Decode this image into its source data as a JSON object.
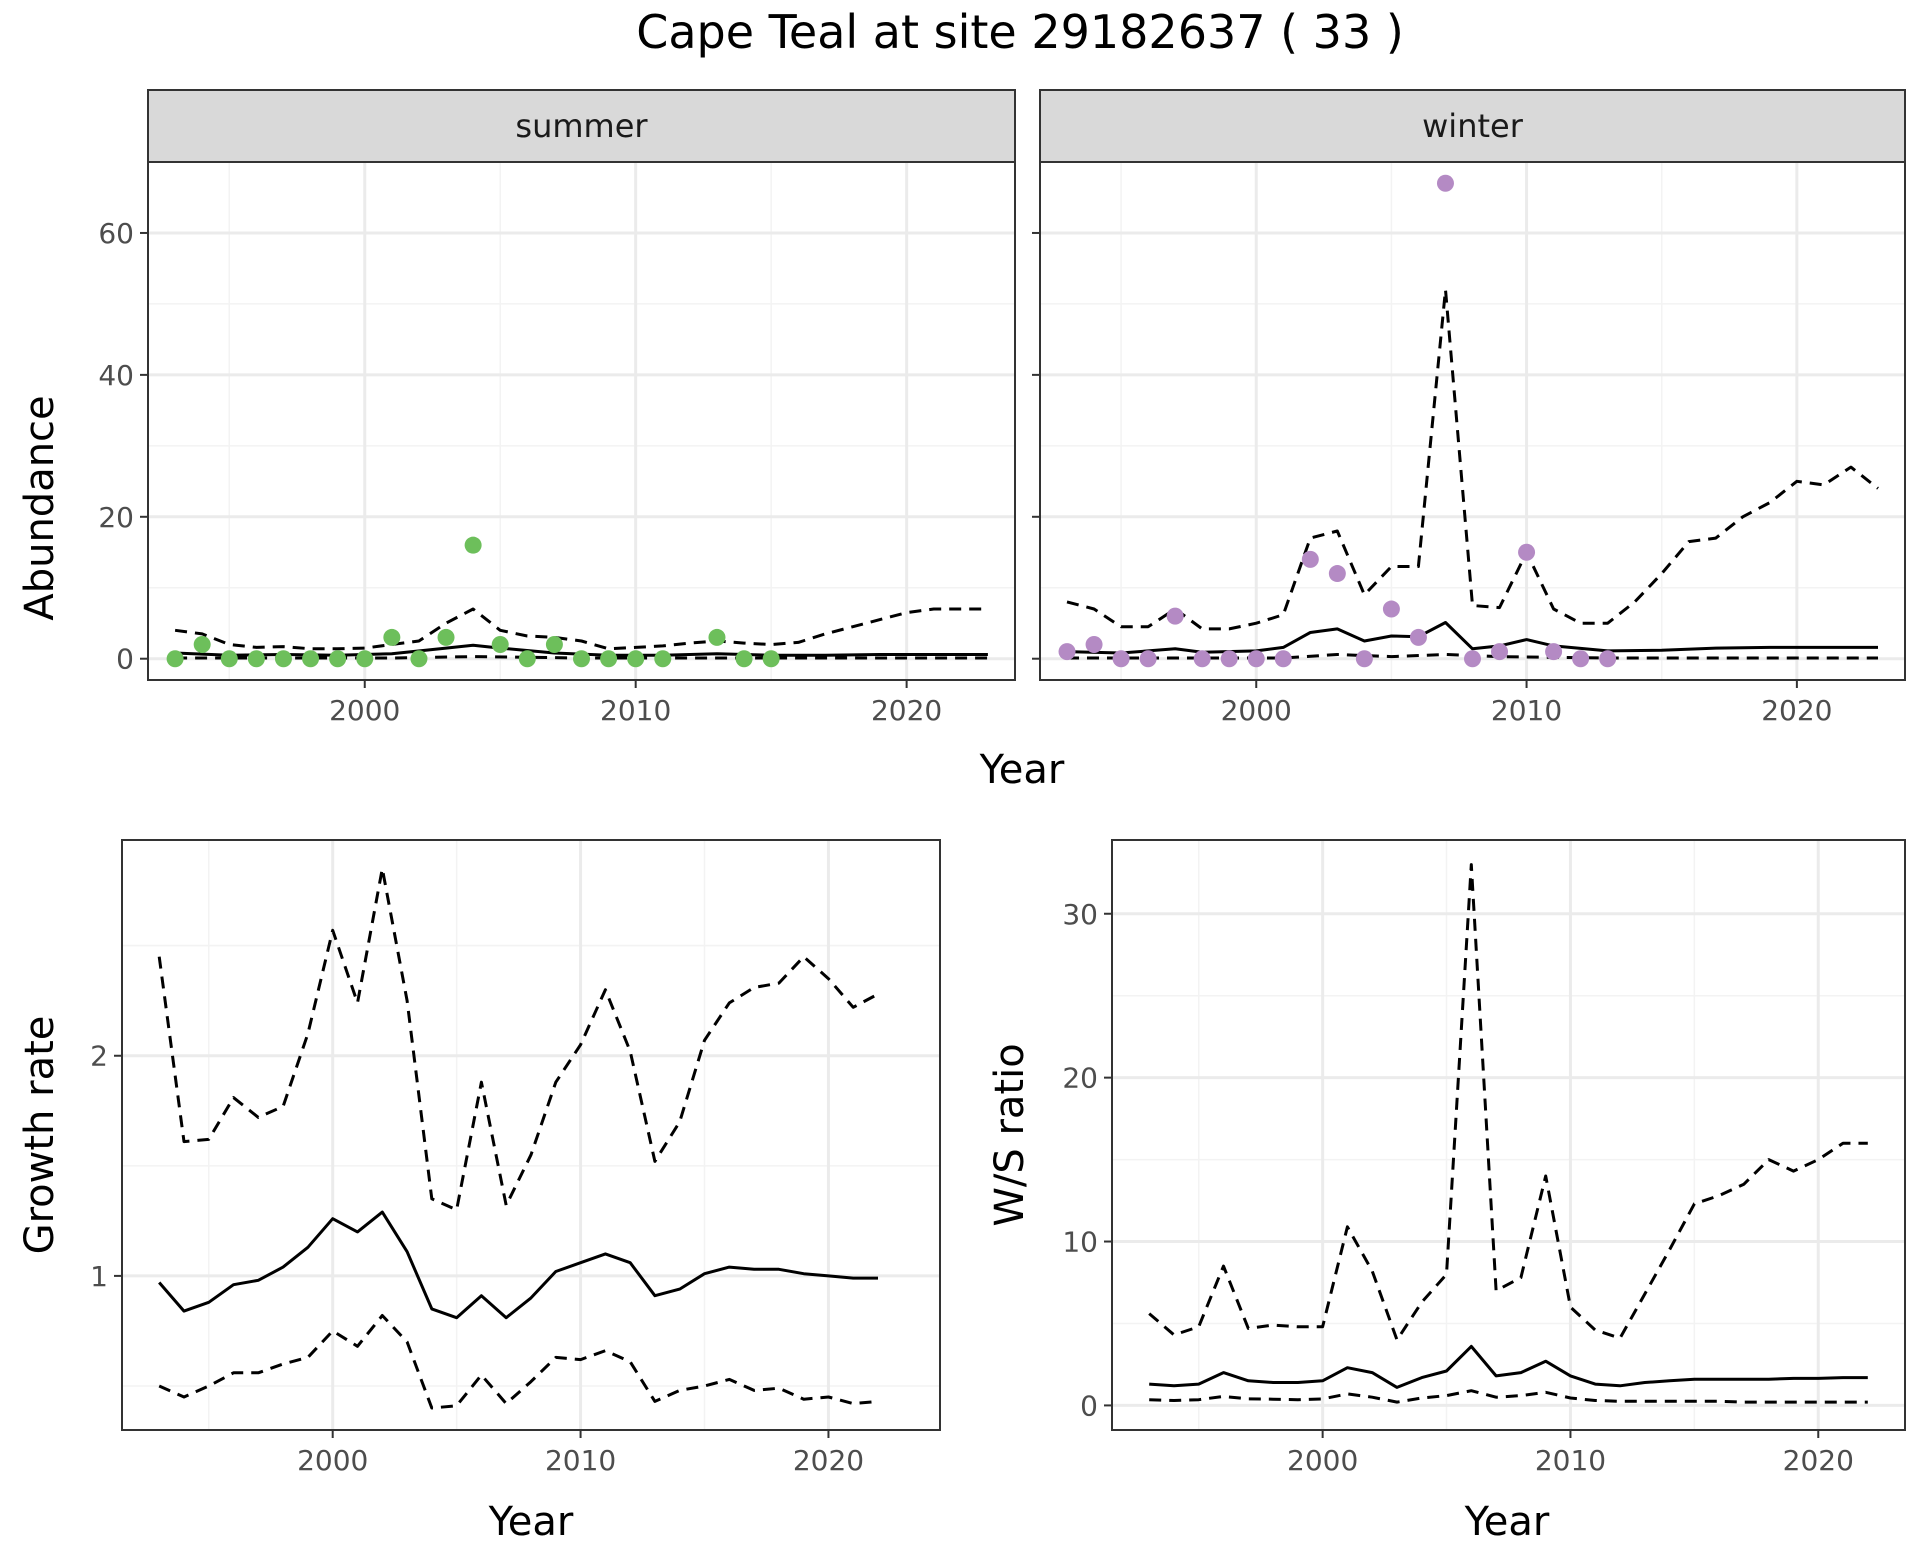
{
  "title": "Cape Teal at site 29182637 ( 33 )",
  "colors": {
    "summer_points": "#6dbf5b",
    "winter_points": "#b48ac4",
    "lines": "#000000",
    "strip_bg": "#d9d9d9",
    "grid": "#ebebeb"
  },
  "chart_data": [
    {
      "type": "line",
      "panel": "summer",
      "strip": "summer",
      "xlabel": "Year",
      "ylabel": "Abundance",
      "xlim": [
        1992,
        2024
      ],
      "ylim": [
        -3,
        70
      ],
      "xticks": [
        2000,
        2010,
        2020
      ],
      "yticks": [
        0,
        20,
        40,
        60
      ],
      "grid": true,
      "points": {
        "x": [
          1993,
          1994,
          1995,
          1996,
          1997,
          1998,
          1999,
          2000,
          2001,
          2002,
          2003,
          2004,
          2005,
          2006,
          2007,
          2008,
          2009,
          2010,
          2011,
          2013,
          2014,
          2015
        ],
        "y": [
          0,
          2,
          0,
          0,
          0,
          0,
          0,
          0,
          3,
          0,
          3,
          16,
          2,
          0,
          2,
          0,
          0,
          0,
          0,
          3,
          0,
          0
        ]
      },
      "series": [
        {
          "style": "solid",
          "x": [
            1993,
            1995,
            1997,
            1999,
            2001,
            2003,
            2004,
            2005,
            2007,
            2009,
            2011,
            2013,
            2015,
            2017,
            2019,
            2021,
            2023
          ],
          "y": [
            0.8,
            0.5,
            0.6,
            0.5,
            0.7,
            1.5,
            1.9,
            1.5,
            0.8,
            0.5,
            0.5,
            0.7,
            0.5,
            0.5,
            0.6,
            0.6,
            0.6
          ]
        },
        {
          "style": "dashed",
          "x": [
            1993,
            1994,
            1995,
            1996,
            1997,
            1998,
            1999,
            2000,
            2001,
            2002,
            2003,
            2004,
            2005,
            2006,
            2007,
            2008,
            2009,
            2010,
            2011,
            2012,
            2013,
            2014,
            2015,
            2016,
            2017,
            2018,
            2019,
            2020,
            2021,
            2022,
            2023
          ],
          "y": [
            4,
            3.5,
            2,
            1.6,
            1.7,
            1.4,
            1.4,
            1.5,
            2,
            2.5,
            5,
            7,
            4,
            3.2,
            3,
            2.5,
            1.4,
            1.6,
            1.8,
            2.2,
            2.5,
            2.2,
            2,
            2.3,
            3.5,
            4.5,
            5.5,
            6.5,
            7,
            7,
            7
          ]
        },
        {
          "style": "dashed",
          "x": [
            1993,
            1997,
            2001,
            2004,
            2008,
            2012,
            2016,
            2020,
            2023
          ],
          "y": [
            0.1,
            0.1,
            0.1,
            0.3,
            0.1,
            0.1,
            0.1,
            0.1,
            0.1
          ]
        }
      ]
    },
    {
      "type": "line",
      "panel": "winter",
      "strip": "winter",
      "xlabel": "Year",
      "ylabel": "",
      "xlim": [
        1992,
        2024
      ],
      "ylim": [
        -3,
        70
      ],
      "xticks": [
        2000,
        2010,
        2020
      ],
      "yticks": [
        0,
        20,
        40,
        60
      ],
      "grid": true,
      "points": {
        "x": [
          1993,
          1994,
          1995,
          1996,
          1997,
          1998,
          1999,
          2000,
          2001,
          2002,
          2003,
          2004,
          2005,
          2006,
          2007,
          2008,
          2009,
          2010,
          2011,
          2012,
          2013
        ],
        "y": [
          1,
          2,
          0,
          0,
          6,
          0,
          0,
          0,
          0,
          14,
          12,
          0,
          7,
          3,
          67,
          0,
          1,
          15,
          1,
          0,
          0
        ]
      },
      "series": [
        {
          "style": "solid",
          "x": [
            1993,
            1995,
            1997,
            1998,
            2000,
            2001,
            2002,
            2003,
            2004,
            2005,
            2006,
            2007,
            2008,
            2009,
            2010,
            2011,
            2013,
            2015,
            2017,
            2019,
            2021,
            2023
          ],
          "y": [
            1,
            0.8,
            1.4,
            0.9,
            1.1,
            1.6,
            3.7,
            4.2,
            2.5,
            3.2,
            3.1,
            5.1,
            1.4,
            1.8,
            2.7,
            1.8,
            1.1,
            1.2,
            1.5,
            1.6,
            1.6,
            1.6
          ]
        },
        {
          "style": "dashed",
          "x": [
            1993,
            1994,
            1995,
            1996,
            1997,
            1998,
            1999,
            2000,
            2001,
            2002,
            2003,
            2004,
            2005,
            2006,
            2007,
            2008,
            2009,
            2010,
            2011,
            2012,
            2013,
            2014,
            2015,
            2016,
            2017,
            2018,
            2019,
            2020,
            2021,
            2022,
            2023
          ],
          "y": [
            8,
            7,
            4.5,
            4.5,
            7,
            4.2,
            4.2,
            5,
            6.2,
            17,
            18,
            9,
            13,
            13,
            52,
            7.5,
            7.2,
            15,
            7,
            5,
            5,
            8,
            12,
            16.5,
            17,
            20,
            22,
            25,
            24.5,
            27,
            24
          ]
        },
        {
          "style": "dashed",
          "x": [
            1993,
            1997,
            2001,
            2003,
            2005,
            2007,
            2009,
            2013,
            2017,
            2023
          ],
          "y": [
            0.1,
            0.1,
            0.1,
            0.6,
            0.3,
            0.6,
            0.3,
            0.1,
            0.1,
            0.1
          ]
        }
      ]
    },
    {
      "type": "line",
      "panel": "growth",
      "xlabel": "Year",
      "ylabel": "Growth rate",
      "xlim": [
        1991.5,
        2024.5
      ],
      "ylim": [
        0.3,
        2.98
      ],
      "xticks": [
        2000,
        2010,
        2020
      ],
      "yticks": [
        1,
        2
      ],
      "grid": true,
      "series": [
        {
          "style": "solid",
          "x": [
            1993,
            1994,
            1995,
            1996,
            1997,
            1998,
            1999,
            2000,
            2001,
            2002,
            2003,
            2004,
            2005,
            2006,
            2007,
            2008,
            2009,
            2010,
            2011,
            2012,
            2013,
            2014,
            2015,
            2016,
            2017,
            2018,
            2019,
            2020,
            2021,
            2022
          ],
          "y": [
            0.97,
            0.84,
            0.88,
            0.96,
            0.98,
            1.04,
            1.13,
            1.26,
            1.2,
            1.29,
            1.11,
            0.85,
            0.81,
            0.91,
            0.81,
            0.9,
            1.02,
            1.06,
            1.1,
            1.06,
            0.91,
            0.94,
            1.01,
            1.04,
            1.03,
            1.03,
            1.01,
            1,
            0.99,
            0.99
          ]
        },
        {
          "style": "dashed",
          "x": [
            1993,
            1994,
            1995,
            1996,
            1997,
            1998,
            1999,
            2000,
            2001,
            2002,
            2003,
            2004,
            2005,
            2006,
            2007,
            2008,
            2009,
            2010,
            2011,
            2012,
            2013,
            2014,
            2015,
            2016,
            2017,
            2018,
            2019,
            2020,
            2021,
            2022
          ],
          "y": [
            2.45,
            1.61,
            1.62,
            1.81,
            1.72,
            1.77,
            2.1,
            2.57,
            2.24,
            2.85,
            2.25,
            1.35,
            1.3,
            1.88,
            1.32,
            1.55,
            1.88,
            2.05,
            2.3,
            2.02,
            1.52,
            1.7,
            2.07,
            2.24,
            2.31,
            2.33,
            2.45,
            2.35,
            2.22,
            2.28
          ]
        },
        {
          "style": "dashed",
          "x": [
            1993,
            1994,
            1995,
            1996,
            1997,
            1998,
            1999,
            2000,
            2001,
            2002,
            2003,
            2004,
            2005,
            2006,
            2007,
            2008,
            2009,
            2010,
            2011,
            2012,
            2013,
            2014,
            2015,
            2016,
            2017,
            2018,
            2019,
            2020,
            2021,
            2022
          ],
          "y": [
            0.5,
            0.45,
            0.5,
            0.56,
            0.56,
            0.6,
            0.63,
            0.75,
            0.68,
            0.82,
            0.7,
            0.4,
            0.41,
            0.55,
            0.42,
            0.52,
            0.63,
            0.62,
            0.66,
            0.61,
            0.43,
            0.48,
            0.5,
            0.53,
            0.48,
            0.49,
            0.44,
            0.45,
            0.42,
            0.43
          ]
        }
      ]
    },
    {
      "type": "line",
      "panel": "ratio",
      "xlabel": "Year",
      "ylabel": "W/S ratio",
      "xlim": [
        1991.5,
        2023.5
      ],
      "ylim": [
        -1.5,
        34.5
      ],
      "xticks": [
        2000,
        2010,
        2020
      ],
      "yticks": [
        0,
        10,
        20,
        30
      ],
      "grid": true,
      "series": [
        {
          "style": "solid",
          "x": [
            1993,
            1994,
            1995,
            1996,
            1997,
            1998,
            1999,
            2000,
            2001,
            2002,
            2003,
            2004,
            2005,
            2006,
            2007,
            2008,
            2009,
            2010,
            2011,
            2012,
            2013,
            2014,
            2015,
            2016,
            2017,
            2018,
            2019,
            2020,
            2021,
            2022
          ],
          "y": [
            1.3,
            1.2,
            1.3,
            2,
            1.5,
            1.4,
            1.4,
            1.5,
            2.3,
            2,
            1.1,
            1.7,
            2.1,
            3.6,
            1.8,
            2,
            2.7,
            1.8,
            1.3,
            1.2,
            1.4,
            1.5,
            1.6,
            1.6,
            1.6,
            1.6,
            1.65,
            1.65,
            1.7,
            1.7
          ]
        },
        {
          "style": "dashed",
          "x": [
            1993,
            1994,
            1995,
            1996,
            1997,
            1998,
            1999,
            2000,
            2001,
            2002,
            2003,
            2004,
            2005,
            2006,
            2007,
            2008,
            2009,
            2010,
            2011,
            2012,
            2013,
            2014,
            2015,
            2016,
            2017,
            2018,
            2019,
            2020,
            2021,
            2022
          ],
          "y": [
            5.6,
            4.3,
            4.8,
            8.5,
            4.7,
            4.9,
            4.8,
            4.8,
            10.9,
            8.2,
            4,
            6.3,
            8,
            33,
            7,
            7.8,
            14,
            6,
            4.6,
            4.1,
            6.8,
            9.5,
            12.3,
            12.8,
            13.5,
            15,
            14.3,
            15,
            16,
            16
          ]
        },
        {
          "style": "dashed",
          "x": [
            1993,
            1994,
            1995,
            1996,
            1997,
            1998,
            1999,
            2000,
            2001,
            2002,
            2003,
            2004,
            2005,
            2006,
            2007,
            2008,
            2009,
            2010,
            2011,
            2012,
            2013,
            2014,
            2015,
            2016,
            2017,
            2018,
            2019,
            2020,
            2021,
            2022
          ],
          "y": [
            0.35,
            0.3,
            0.35,
            0.55,
            0.4,
            0.38,
            0.35,
            0.4,
            0.7,
            0.5,
            0.2,
            0.45,
            0.6,
            0.9,
            0.5,
            0.6,
            0.8,
            0.45,
            0.3,
            0.25,
            0.25,
            0.25,
            0.25,
            0.25,
            0.2,
            0.2,
            0.2,
            0.2,
            0.2,
            0.2
          ]
        }
      ]
    }
  ]
}
